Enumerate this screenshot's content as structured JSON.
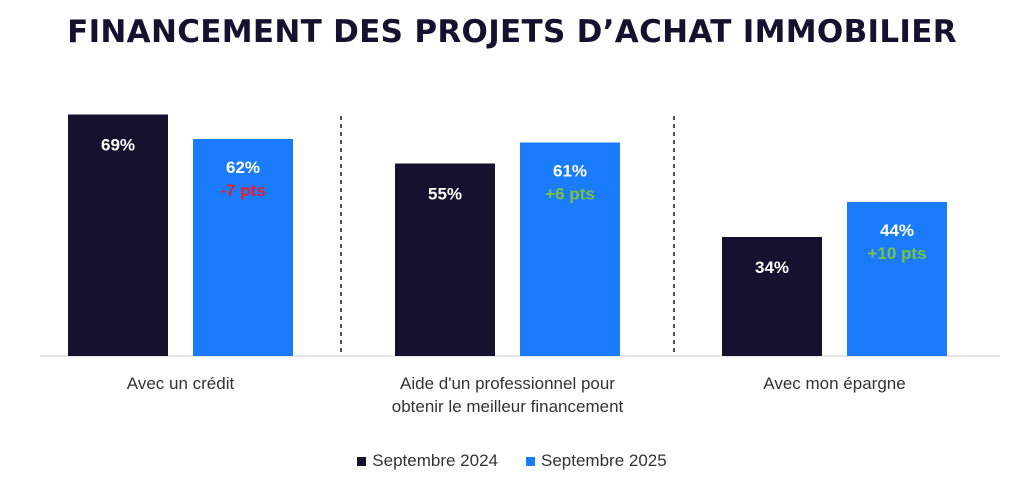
{
  "chart_data": {
    "type": "bar",
    "title": "FINANCEMENT DES PROJETS D’ACHAT IMMOBILIER",
    "categories": [
      [
        "Avec un crédit"
      ],
      [
        "Aide d'un professionnel pour",
        "obtenir le meilleur financement"
      ],
      [
        "Avec mon épargne"
      ]
    ],
    "series": [
      {
        "name": "Septembre 2024",
        "color": "#15112f",
        "values": [
          69,
          55,
          34
        ],
        "labels": [
          "69%",
          "55%",
          "34%"
        ]
      },
      {
        "name": "Septembre 2025",
        "color": "#1a7cfa",
        "values": [
          62,
          61,
          44
        ],
        "labels": [
          "62%",
          "61%",
          "44%"
        ],
        "deltas": [
          "-7 pts",
          "+6 pts",
          "+10 pts"
        ],
        "delta_colors": [
          "#e0202e",
          "#7ac143",
          "#7ac143"
        ]
      }
    ],
    "ylim": [
      0,
      100
    ],
    "grid": false,
    "legend_position": "bottom-center"
  }
}
